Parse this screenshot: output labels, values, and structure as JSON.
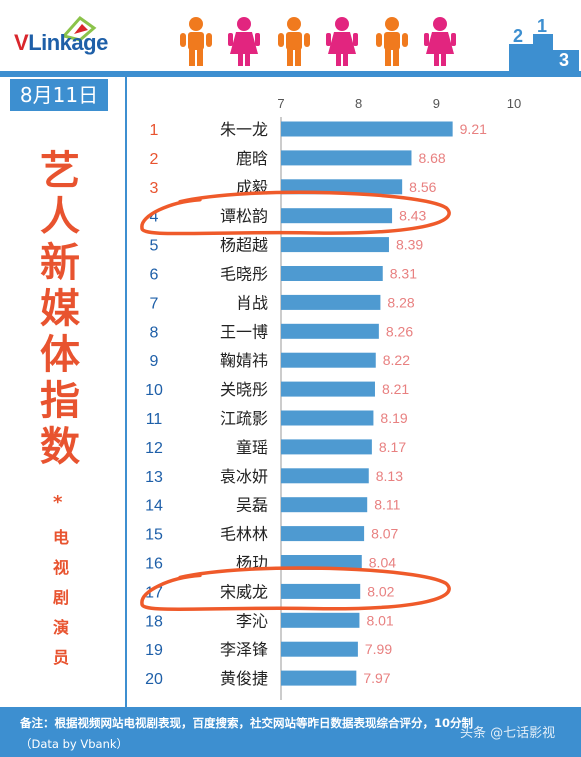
{
  "brand": {
    "logo_v": "V",
    "logo_rest": "Linkage"
  },
  "date_badge": "8月11日",
  "vertical_title": [
    "艺",
    "人",
    "新",
    "媒",
    "体",
    "指",
    "数"
  ],
  "star": "*",
  "vertical_subtitle": [
    "电",
    "视",
    "剧",
    "演",
    "员"
  ],
  "footer": {
    "note": "备注：根据视频网站电视剧表现，百度搜索，社交网站等昨日数据表现综合评分，10分制",
    "source": "（Data by Vbank）"
  },
  "watermark": "头条 @七话影视",
  "colors": {
    "accent": "#3d8fd0",
    "bar": "#4e9ad1",
    "label_red": "#e8532f",
    "value_pink": "#e88080"
  },
  "chart_data": {
    "type": "bar",
    "orientation": "horizontal",
    "title": "",
    "xlim": [
      7,
      10
    ],
    "xticks": [
      7,
      8,
      9,
      10
    ],
    "grid": false,
    "ranks": [
      1,
      2,
      3,
      4,
      5,
      6,
      7,
      8,
      9,
      10,
      11,
      12,
      13,
      14,
      15,
      16,
      17,
      18,
      19,
      20
    ],
    "categories": [
      "朱一龙",
      "鹿晗",
      "成毅",
      "谭松韵",
      "杨超越",
      "毛晓彤",
      "肖战",
      "王一博",
      "鞠婧祎",
      "关晓彤",
      "江疏影",
      "童瑶",
      "袁冰妍",
      "吴磊",
      "毛林林",
      "杨玏",
      "宋威龙",
      "李沁",
      "李泽锋",
      "黄俊捷"
    ],
    "values": [
      9.21,
      8.68,
      8.56,
      8.43,
      8.39,
      8.31,
      8.28,
      8.26,
      8.22,
      8.21,
      8.19,
      8.17,
      8.13,
      8.11,
      8.07,
      8.04,
      8.02,
      8.01,
      7.99,
      7.97
    ],
    "value_labels": [
      "9.21",
      "8.68",
      "8.56",
      "8.43",
      "8.39",
      "8.31",
      "8.28",
      "8.26",
      "8.22",
      "8.21",
      "8.19",
      "8.17",
      "8.13",
      "8.11",
      "8.07",
      "8.04",
      "8.02",
      "8.01",
      "7.99",
      "7.97"
    ],
    "highlighted": [
      "谭松韵",
      "宋威龙"
    ]
  }
}
